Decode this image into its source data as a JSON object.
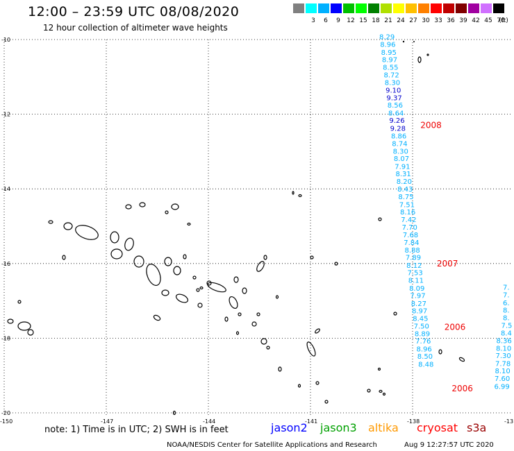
{
  "header": {
    "title": "12:00 – 23:59 UTC 08/08/2020",
    "subtitle": "12 hour collection of altimeter wave heights"
  },
  "legend": {
    "unit": "(ft)",
    "items": [
      {
        "label": "",
        "color": "#808080"
      },
      {
        "label": "3",
        "color": "#00ffff"
      },
      {
        "label": "6",
        "color": "#00b0ff"
      },
      {
        "label": "9",
        "color": "#0000ff"
      },
      {
        "label": "12",
        "color": "#00c000"
      },
      {
        "label": "15",
        "color": "#00ff00"
      },
      {
        "label": "18",
        "color": "#008000"
      },
      {
        "label": "21",
        "color": "#b0e000"
      },
      {
        "label": "24",
        "color": "#ffff00"
      },
      {
        "label": "27",
        "color": "#ffc000"
      },
      {
        "label": "30",
        "color": "#ff8000"
      },
      {
        "label": "33",
        "color": "#ff0000"
      },
      {
        "label": "36",
        "color": "#c00000"
      },
      {
        "label": "39",
        "color": "#800000"
      },
      {
        "label": "42",
        "color": "#a000a0"
      },
      {
        "label": "45",
        "color": "#d070ff"
      },
      {
        "label": "70",
        "color": "#000000"
      }
    ]
  },
  "axes": {
    "lat_ticks": [
      "-10",
      "-12",
      "-14",
      "-16",
      "-18",
      "-20"
    ],
    "lon_ticks": [
      "-150",
      "-147",
      "-144",
      "-141",
      "-138",
      "-13"
    ]
  },
  "tracks": {
    "main_color": "#00b0ff",
    "highlight_color": "#0000cc",
    "main": [
      {
        "value": "8.29",
        "lat": -9.92,
        "hi": false
      },
      {
        "value": "8.96",
        "lat": -10.12,
        "hi": false
      },
      {
        "value": "8.95",
        "lat": -10.33,
        "hi": false
      },
      {
        "value": "8.97",
        "lat": -10.53,
        "hi": false
      },
      {
        "value": "8.55",
        "lat": -10.73,
        "hi": false
      },
      {
        "value": "8.72",
        "lat": -10.94,
        "hi": false
      },
      {
        "value": "8.30",
        "lat": -11.14,
        "hi": false
      },
      {
        "value": "9.10",
        "lat": -11.35,
        "hi": true
      },
      {
        "value": "9.37",
        "lat": -11.55,
        "hi": true
      },
      {
        "value": "8.56",
        "lat": -11.75,
        "hi": false
      },
      {
        "value": "8.64",
        "lat": -11.96,
        "hi": false
      },
      {
        "value": "9.26",
        "lat": -12.16,
        "hi": true
      },
      {
        "value": "9.28",
        "lat": -12.37,
        "hi": true
      },
      {
        "value": "8.86",
        "lat": -12.57,
        "hi": false
      },
      {
        "value": "8.74",
        "lat": -12.78,
        "hi": false
      },
      {
        "value": "8.30",
        "lat": -12.98,
        "hi": false
      },
      {
        "value": "8.07",
        "lat": -13.18,
        "hi": false
      },
      {
        "value": "7.91",
        "lat": -13.39,
        "hi": false
      },
      {
        "value": "8.31",
        "lat": -13.59,
        "hi": false
      },
      {
        "value": "8.20",
        "lat": -13.79,
        "hi": false
      },
      {
        "value": "8.43",
        "lat": -14.0,
        "hi": false
      },
      {
        "value": "8.75",
        "lat": -14.2,
        "hi": false
      },
      {
        "value": "7.51",
        "lat": -14.41,
        "hi": false
      },
      {
        "value": "8.16",
        "lat": -14.61,
        "hi": false
      },
      {
        "value": "7.42",
        "lat": -14.81,
        "hi": false
      },
      {
        "value": "7.70",
        "lat": -15.02,
        "hi": false
      },
      {
        "value": "7.68",
        "lat": -15.22,
        "hi": false
      },
      {
        "value": "7.84",
        "lat": -15.43,
        "hi": false
      },
      {
        "value": "8.88",
        "lat": -15.63,
        "hi": false
      },
      {
        "value": "7.89",
        "lat": -15.83,
        "hi": false
      },
      {
        "value": "8.12",
        "lat": -16.04,
        "hi": false
      },
      {
        "value": "7.53",
        "lat": -16.24,
        "hi": false
      },
      {
        "value": "8.11",
        "lat": -16.44,
        "hi": false
      },
      {
        "value": "8.09",
        "lat": -16.65,
        "hi": false
      },
      {
        "value": "7.97",
        "lat": -16.85,
        "hi": false
      },
      {
        "value": "8.27",
        "lat": -17.06,
        "hi": false
      },
      {
        "value": "8.97",
        "lat": -17.26,
        "hi": false
      },
      {
        "value": "8.45",
        "lat": -17.46,
        "hi": false
      },
      {
        "value": "7.50",
        "lat": -17.67,
        "hi": false
      },
      {
        "value": "8.89",
        "lat": -17.87,
        "hi": false
      },
      {
        "value": "7.76",
        "lat": -18.07,
        "hi": false
      },
      {
        "value": "8.96",
        "lat": -18.28,
        "hi": false
      },
      {
        "value": "8.50",
        "lat": -18.48,
        "hi": false
      },
      {
        "value": "8.48",
        "lat": -18.69,
        "hi": false
      }
    ],
    "right": [
      {
        "value": "7.",
        "lat": -16.63
      },
      {
        "value": "7.",
        "lat": -16.83
      },
      {
        "value": "6.",
        "lat": -17.04
      },
      {
        "value": "8.",
        "lat": -17.24
      },
      {
        "value": "8.",
        "lat": -17.44
      },
      {
        "value": "7.5",
        "lat": -17.65
      },
      {
        "value": "8.4",
        "lat": -17.85
      },
      {
        "value": "8.36",
        "lat": -18.06
      },
      {
        "value": "8.10",
        "lat": -18.26
      },
      {
        "value": "7.30",
        "lat": -18.46
      },
      {
        "value": "7.78",
        "lat": -18.67
      },
      {
        "value": "8.10",
        "lat": -18.87
      },
      {
        "value": "7.60",
        "lat": -19.07
      },
      {
        "value": "6.99",
        "lat": -19.28
      }
    ],
    "time_labels": [
      {
        "label": "2008",
        "lat": -12.3
      },
      {
        "label": "2007",
        "lat": -16.0
      },
      {
        "label": "2006",
        "lat": -17.7
      },
      {
        "label": "2006",
        "lat": -19.35
      }
    ]
  },
  "footer": {
    "note": "note: 1) Time is in UTC; 2) SWH is in feet",
    "satellites": [
      {
        "name": "jason2",
        "color": "#0000ff"
      },
      {
        "name": "jason3",
        "color": "#00a000"
      },
      {
        "name": "altika",
        "color": "#ff9900"
      },
      {
        "name": "cryosat",
        "color": "#ff0000"
      },
      {
        "name": "s3a",
        "color": "#990000"
      }
    ],
    "credit": "NOAA/NESDIS Center for Satellite Applications and Research",
    "timestamp": "Aug  9 12:27:57 UTC 2020"
  }
}
